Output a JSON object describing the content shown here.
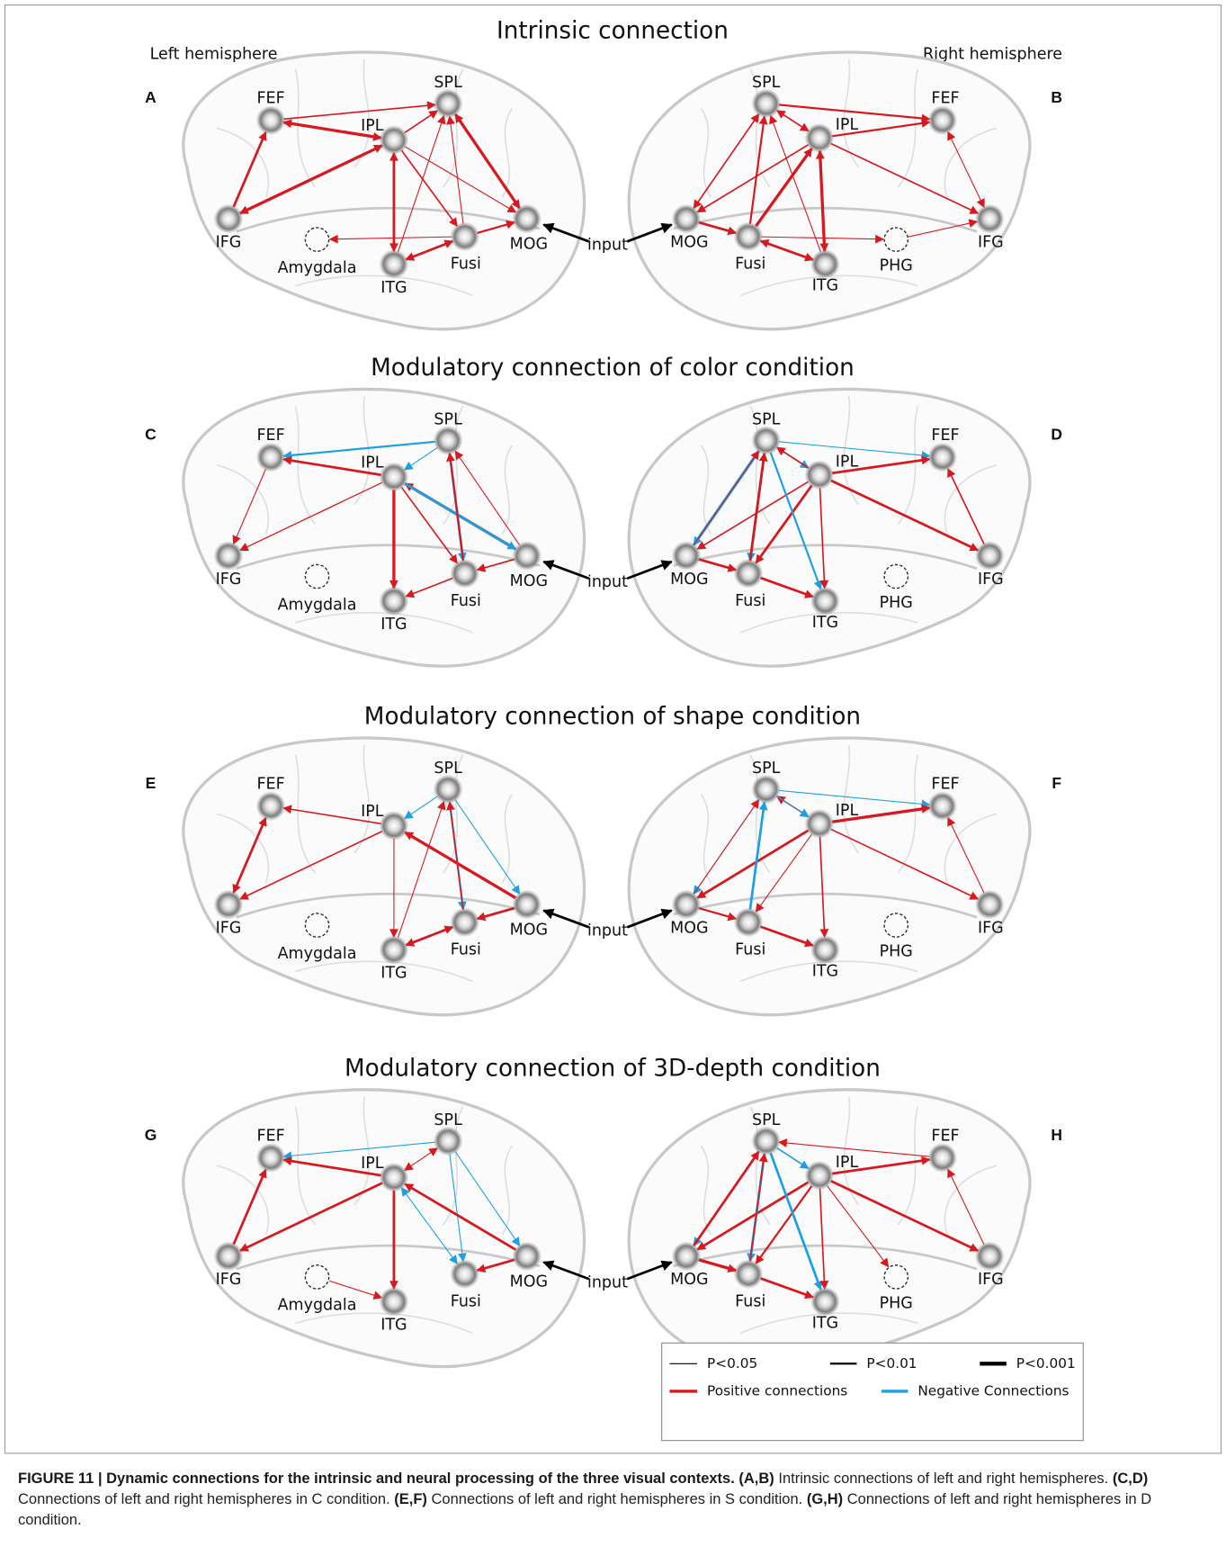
{
  "figure": {
    "hemispheres": [
      "Left hemisphere",
      "Right hemisphere"
    ],
    "sections": [
      {
        "title": "Intrinsic connection",
        "letters": [
          "A",
          "B"
        ],
        "left_nodes": [
          "FEF",
          "SPL",
          "IPL",
          "IFG",
          "Amygdala",
          "ITG",
          "Fusi",
          "MOG"
        ],
        "right_nodes": [
          "SPL",
          "FEF",
          "IPL",
          "MOG",
          "Fusi",
          "ITG",
          "PHG",
          "IFG"
        ],
        "input": "input"
      },
      {
        "title": "Modulatory connection of color condition",
        "letters": [
          "C",
          "D"
        ],
        "left_nodes": [
          "FEF",
          "SPL",
          "IPL",
          "IFG",
          "Amygdala",
          "ITG",
          "Fusi",
          "MOG"
        ],
        "right_nodes": [
          "SPL",
          "FEF",
          "IPL",
          "MOG",
          "Fusi",
          "ITG",
          "PHG",
          "IFG"
        ],
        "input": "input"
      },
      {
        "title": "Modulatory connection of shape condition",
        "letters": [
          "E",
          "F"
        ],
        "left_nodes": [
          "FEF",
          "SPL",
          "IPL",
          "IFG",
          "Amygdala",
          "ITG",
          "Fusi",
          "MOG"
        ],
        "right_nodes": [
          "SPL",
          "FEF",
          "IPL",
          "MOG",
          "Fusi",
          "ITG",
          "PHG",
          "IFG"
        ],
        "input": "input"
      },
      {
        "title": "Modulatory connection of 3D-depth condition",
        "letters": [
          "G",
          "H"
        ],
        "left_nodes": [
          "FEF",
          "SPL",
          "IPL",
          "IFG",
          "Amygdala",
          "ITG",
          "Fusi",
          "MOG"
        ],
        "right_nodes": [
          "SPL",
          "FEF",
          "IPL",
          "MOG",
          "Fusi",
          "ITG",
          "PHG",
          "IFG"
        ],
        "input": "input"
      }
    ],
    "legend": {
      "significance": [
        "P<0.05",
        "P<0.01",
        "P<0.001"
      ],
      "signs": [
        "Positive connections",
        "Negative Connections"
      ]
    },
    "caption": [
      {
        "text": "FIGURE 11 | Dynamic connections for the intrinsic and neural processing of the three visual contexts.",
        "bold": true
      },
      {
        "text": " (A,B)",
        "bold": true
      },
      {
        "text": " Intrinsic connections of left and right hemispheres. ",
        "bold": false
      },
      {
        "text": "(C,D)",
        "bold": true
      },
      {
        "text": " Connections of left and right hemispheres in C condition. ",
        "bold": false
      },
      {
        "text": "(E,F)",
        "bold": true
      },
      {
        "text": " Connections of left and right hemispheres in S condition. ",
        "bold": false
      },
      {
        "text": "(G,H)",
        "bold": true
      },
      {
        "text": " Connections of left and right hemispheres in D condition.",
        "bold": false
      }
    ]
  }
}
